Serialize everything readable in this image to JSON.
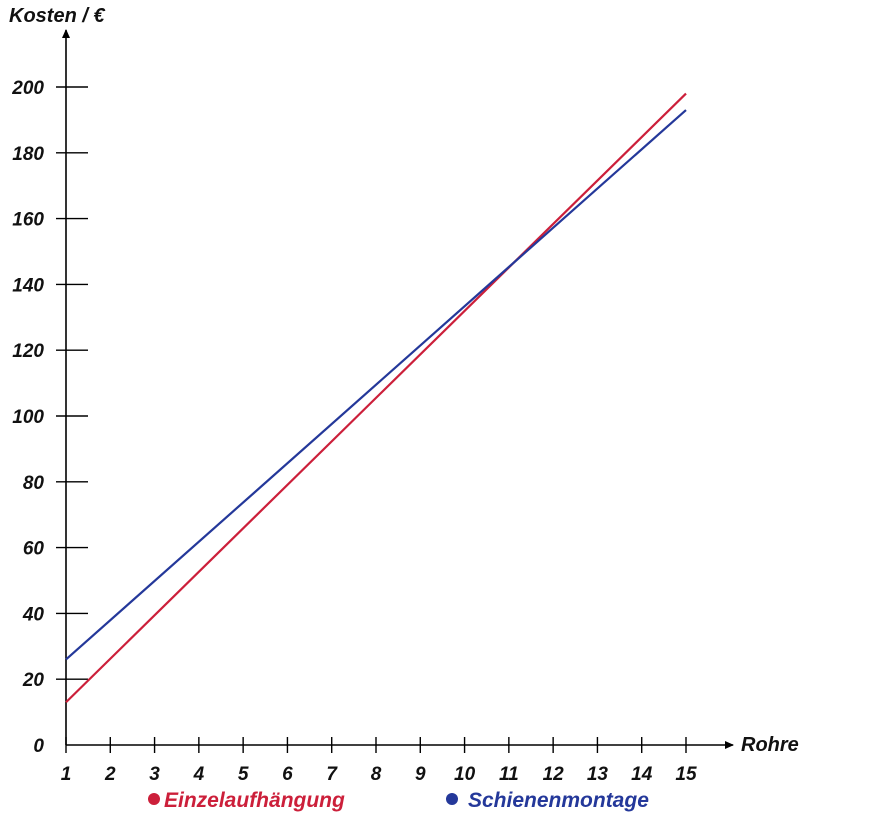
{
  "chart_data": {
    "type": "line",
    "ylabel": "Kosten / €",
    "xlabel": "Rohre",
    "x": [
      1,
      15
    ],
    "xlim": [
      1,
      15
    ],
    "ylim": [
      0,
      200
    ],
    "xticks": [
      1,
      2,
      3,
      4,
      5,
      6,
      7,
      8,
      9,
      10,
      11,
      12,
      13,
      14,
      15
    ],
    "yticks": [
      0,
      20,
      40,
      60,
      80,
      100,
      120,
      140,
      160,
      180,
      200
    ],
    "grid": false,
    "legend_position": "bottom",
    "series": [
      {
        "name": "Einzelaufhängung",
        "x": [
          1,
          15
        ],
        "values": [
          13,
          198
        ],
        "color": "#cc1f3a"
      },
      {
        "name": "Schienenmontage",
        "x": [
          1,
          15
        ],
        "values": [
          26,
          193
        ],
        "color": "#24389a"
      }
    ]
  }
}
